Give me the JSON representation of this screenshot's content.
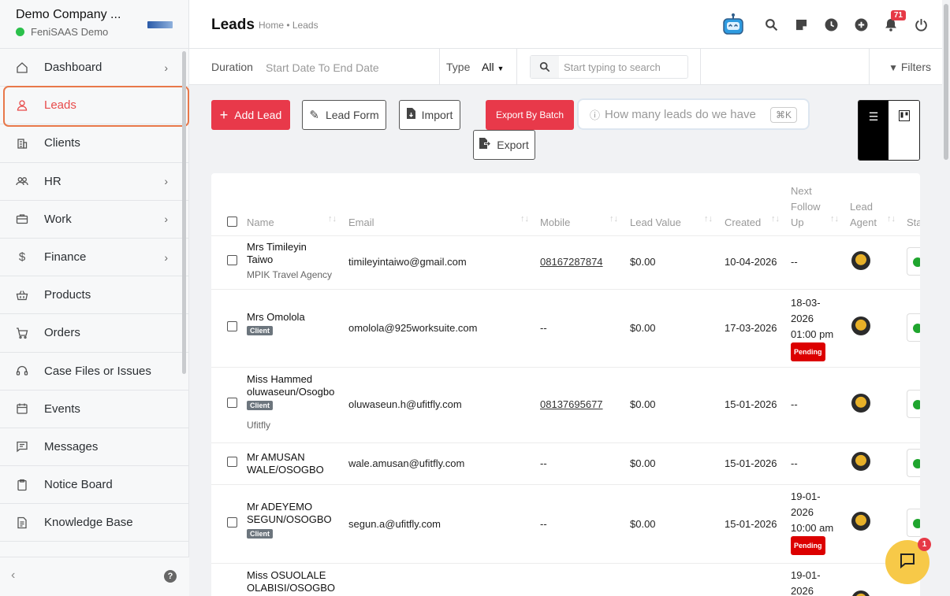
{
  "company": {
    "name": "Demo Company ...",
    "subtitle": "FeniSAAS Demo"
  },
  "sidebar": {
    "items": [
      {
        "label": "Dashboard",
        "icon": "home-icon",
        "has_children": true
      },
      {
        "label": "Leads",
        "icon": "user-icon",
        "active": true
      },
      {
        "label": "Clients",
        "icon": "building-icon"
      },
      {
        "label": "HR",
        "icon": "people-icon",
        "has_children": true
      },
      {
        "label": "Work",
        "icon": "briefcase-icon",
        "has_children": true
      },
      {
        "label": "Finance",
        "icon": "dollar-icon",
        "has_children": true
      },
      {
        "label": "Products",
        "icon": "basket-icon"
      },
      {
        "label": "Orders",
        "icon": "cart-icon"
      },
      {
        "label": "Case Files or Issues",
        "icon": "headset-icon"
      },
      {
        "label": "Events",
        "icon": "calendar-icon"
      },
      {
        "label": "Messages",
        "icon": "chat-icon"
      },
      {
        "label": "Notice Board",
        "icon": "clipboard-icon"
      },
      {
        "label": "Knowledge Base",
        "icon": "document-icon"
      }
    ]
  },
  "header": {
    "title": "Leads",
    "breadcrumb": "Home • Leads",
    "notification_count": "71"
  },
  "filters": {
    "duration_label": "Duration",
    "date_range": "Start Date To End Date",
    "type_label": "Type",
    "type_value": "All",
    "search_placeholder": "Start typing to search",
    "filters_label": "Filters"
  },
  "actions": {
    "add_lead": "Add Lead",
    "lead_form": "Lead Form",
    "import": "Import",
    "export_batch": "Export By Batch",
    "export": "Export",
    "ask_placeholder": "How many leads do we have",
    "ask_shortcut": "⌘K"
  },
  "table": {
    "columns": {
      "name": "Name",
      "email": "Email",
      "mobile": "Mobile",
      "lead_value": "Lead Value",
      "created": "Created",
      "next_follow_1": "Next",
      "next_follow_2": "Follow",
      "next_follow_3": "Up",
      "agent_1": "Lead",
      "agent_2": "Agent",
      "status": "Sta"
    },
    "rows": [
      {
        "name1": "Mrs Timileyin",
        "name2": "Taiwo",
        "company": "MPIK Travel Agency",
        "email": "timileyintaiwo@gmail.com",
        "mobile": "08167287874",
        "value": "$0.00",
        "created": "10-04-2026",
        "follow": "--"
      },
      {
        "name1": "Mrs Omolola",
        "tag": "Client",
        "email": "omolola@925worksuite.com",
        "mobile": "--",
        "value": "$0.00",
        "created": "17-03-2026",
        "follow1": "18-03-",
        "follow2": "2026",
        "follow3": "01:00 pm",
        "follow_status": "Pending"
      },
      {
        "name1": "Miss Hammed",
        "name2": "oluwaseun/Osogbo",
        "tag": "Client",
        "company": "Ufitfly",
        "email": "oluwaseun.h@ufitfly.com",
        "mobile": "08137695677",
        "value": "$0.00",
        "created": "15-01-2026",
        "follow": "--"
      },
      {
        "name1": "Mr AMUSAN",
        "name2": "WALE/OSOGBO",
        "email": "wale.amusan@ufitfly.com",
        "mobile": "--",
        "value": "$0.00",
        "created": "15-01-2026",
        "follow": "--"
      },
      {
        "name1": "Mr ADEYEMO",
        "name2": "SEGUN/OSOGBO",
        "tag": "Client",
        "email": "segun.a@ufitfly.com",
        "mobile": "--",
        "value": "$0.00",
        "created": "15-01-2026",
        "follow1": "19-01-",
        "follow2": "2026",
        "follow3": "10:00 am",
        "follow_status": "Pending"
      },
      {
        "name1": "Miss OSUOLALE",
        "name2": "OLABISI/OSOGBO",
        "follow1": "19-01-",
        "follow2": "2026"
      }
    ]
  },
  "chat": {
    "badge": "1"
  },
  "colors": {
    "accent": "#e8394a",
    "active_outline": "#e8784a",
    "online": "#2bc04b",
    "status_green": "#1fa52e"
  }
}
